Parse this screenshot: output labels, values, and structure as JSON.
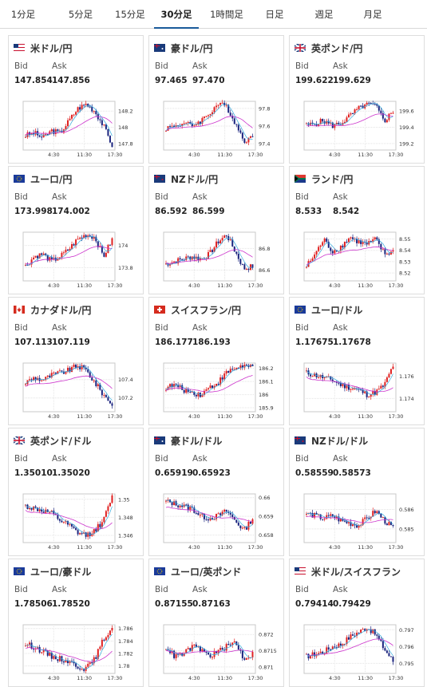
{
  "tabs": [
    {
      "label": "1分足",
      "active": false
    },
    {
      "label": "5分足",
      "active": false
    },
    {
      "label": "15分足",
      "active": false
    },
    {
      "label": "30分足",
      "active": true
    },
    {
      "label": "1時間足",
      "active": false
    },
    {
      "label": "日足",
      "active": false
    },
    {
      "label": "週足",
      "active": false
    },
    {
      "label": "月足",
      "active": false
    }
  ],
  "labels": {
    "bid": "Bid",
    "ask": "Ask"
  },
  "x_ticks": [
    "4:30",
    "11:30",
    "17:30"
  ],
  "colors": {
    "up": "#e02020",
    "down": "#1a237e",
    "ma_long": "#cc33cc",
    "ma_short": "#33aadd",
    "accent": "#1a5a9a"
  },
  "pairs": [
    {
      "name": "米ドル/円",
      "flag": "us-flag-icon",
      "bid": "147.854",
      "ask": "147.856",
      "y_ticks": [
        "148.2",
        "148",
        "147.8"
      ],
      "ylim": [
        147.72,
        148.32
      ]
    },
    {
      "name": "豪ドル/円",
      "flag": "au-flag-icon",
      "bid": "97.465",
      "ask": "97.470",
      "y_ticks": [
        "97.8",
        "97.6",
        "97.4"
      ],
      "ylim": [
        97.33,
        97.88
      ]
    },
    {
      "name": "英ポンド/円",
      "flag": "uk-flag-icon",
      "bid": "199.622",
      "ask": "199.629",
      "y_ticks": [
        "199.6",
        "199.4",
        "199.2"
      ],
      "ylim": [
        199.12,
        199.72
      ]
    },
    {
      "name": "ユーロ/円",
      "flag": "eu-flag-icon",
      "bid": "173.998",
      "ask": "174.002",
      "y_ticks": [
        "174",
        "173.8"
      ],
      "ylim": [
        173.68,
        174.12
      ]
    },
    {
      "name": "NZドル/円",
      "flag": "nz-flag-icon",
      "bid": "86.592",
      "ask": "86.599",
      "y_ticks": [
        "86.8",
        "86.6"
      ],
      "ylim": [
        86.5,
        86.95
      ]
    },
    {
      "name": "ランド/円",
      "flag": "za-flag-icon",
      "bid": "8.533",
      "ask": "8.542",
      "y_ticks": [
        "8.55",
        "8.54",
        "8.53",
        "8.52"
      ],
      "ylim": [
        8.513,
        8.556
      ]
    },
    {
      "name": "カナダドル/円",
      "flag": "ca-flag-icon",
      "bid": "107.113",
      "ask": "107.119",
      "y_ticks": [
        "107.4",
        "107.2"
      ],
      "ylim": [
        107.05,
        107.58
      ]
    },
    {
      "name": "スイスフラン/円",
      "flag": "ch-flag-icon",
      "bid": "186.177",
      "ask": "186.193",
      "y_ticks": [
        "186.2",
        "186.1",
        "186",
        "185.9"
      ],
      "ylim": [
        185.87,
        186.24
      ]
    },
    {
      "name": "ユーロ/ドル",
      "flag": "eu-us-flag-icon",
      "bid": "1.17675",
      "ask": "1.17678",
      "y_ticks": [
        "1.176",
        "1.174"
      ],
      "ylim": [
        1.1728,
        1.1772
      ]
    },
    {
      "name": "英ポンド/ドル",
      "flag": "uk-us-flag-icon",
      "bid": "1.35010",
      "ask": "1.35020",
      "y_ticks": [
        "1.35",
        "1.348",
        "1.346"
      ],
      "ylim": [
        1.3452,
        1.3506
      ]
    },
    {
      "name": "豪ドル/ドル",
      "flag": "au-us-flag-icon",
      "bid": "0.65919",
      "ask": "0.65923",
      "y_ticks": [
        "0.66",
        "0.659",
        "0.658"
      ],
      "ylim": [
        0.6576,
        0.6602
      ]
    },
    {
      "name": "NZドル/ドル",
      "flag": "nz-us-flag-icon",
      "bid": "0.58559",
      "ask": "0.58573",
      "y_ticks": [
        "0.586",
        "0.585"
      ],
      "ylim": [
        0.5843,
        0.5868
      ]
    },
    {
      "name": "ユーロ/豪ドル",
      "flag": "eu-au-flag-icon",
      "bid": "1.78506",
      "ask": "1.78520",
      "y_ticks": [
        "1.786",
        "1.784",
        "1.782",
        "1.78"
      ],
      "ylim": [
        1.7788,
        1.7866
      ]
    },
    {
      "name": "ユーロ/英ポンド",
      "flag": "eu-uk-flag-icon",
      "bid": "0.87155",
      "ask": "0.87163",
      "y_ticks": [
        "0.872",
        "0.8715",
        "0.871"
      ],
      "ylim": [
        0.8708,
        0.8723
      ]
    },
    {
      "name": "米ドル/スイスフラン",
      "flag": "us-ch-flag-icon",
      "bid": "0.79414",
      "ask": "0.79429",
      "y_ticks": [
        "0.797",
        "0.796",
        "0.795"
      ],
      "ylim": [
        0.7944,
        0.7973
      ]
    }
  ]
}
